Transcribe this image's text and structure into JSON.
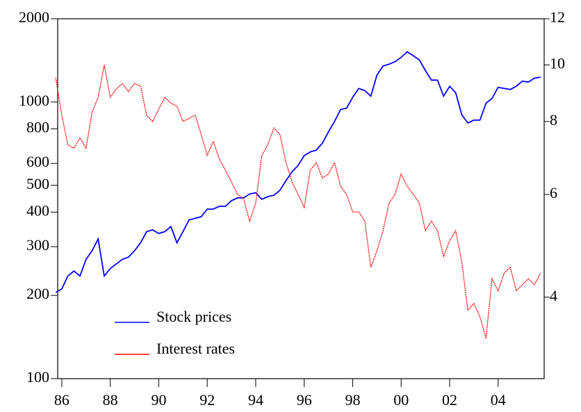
{
  "chart_data": {
    "type": "line",
    "x": [
      1985.75,
      1986,
      1986.25,
      1986.5,
      1986.75,
      1987,
      1987.25,
      1987.5,
      1987.75,
      1988,
      1988.25,
      1988.5,
      1988.75,
      1989,
      1989.25,
      1989.5,
      1989.75,
      1990,
      1990.25,
      1990.5,
      1990.75,
      1991,
      1991.25,
      1991.5,
      1991.75,
      1992,
      1992.25,
      1992.5,
      1992.75,
      1993,
      1993.25,
      1993.5,
      1993.75,
      1994,
      1994.25,
      1994.5,
      1994.75,
      1995,
      1995.25,
      1995.5,
      1995.75,
      1996,
      1996.25,
      1996.5,
      1996.75,
      1997,
      1997.25,
      1997.5,
      1997.75,
      1998,
      1998.25,
      1998.5,
      1998.75,
      1999,
      1999.25,
      1999.5,
      1999.75,
      2000,
      2000.25,
      2000.5,
      2000.75,
      2001,
      2001.25,
      2001.5,
      2001.75,
      2002,
      2002.25,
      2002.5,
      2002.75,
      2003,
      2003.25,
      2003.5,
      2003.75,
      2004,
      2004.25,
      2004.5,
      2004.75,
      2005,
      2005.25,
      2005.5,
      2005.75
    ],
    "series": [
      {
        "name": "Stock prices",
        "color": "#0000ff",
        "axis": "y",
        "values": [
          205,
          211,
          235,
          245,
          235,
          270,
          290,
          320,
          235,
          250,
          260,
          270,
          275,
          290,
          310,
          340,
          345,
          335,
          340,
          355,
          310,
          340,
          375,
          380,
          385,
          410,
          410,
          420,
          420,
          440,
          450,
          450,
          465,
          470,
          445,
          455,
          460,
          480,
          520,
          560,
          590,
          640,
          660,
          670,
          710,
          780,
          850,
          940,
          950,
          1040,
          1120,
          1100,
          1050,
          1250,
          1350,
          1370,
          1400,
          1450,
          1520,
          1470,
          1420,
          1300,
          1200,
          1200,
          1050,
          1140,
          1080,
          900,
          840,
          860,
          860,
          990,
          1030,
          1130,
          1120,
          1110,
          1140,
          1190,
          1180,
          1220,
          1230
        ]
      },
      {
        "name": "Interest rates",
        "color": "#ff0000",
        "axis": "y2",
        "values": [
          9.5,
          8.2,
          7.3,
          7.2,
          7.5,
          7.2,
          8.3,
          8.8,
          10.0,
          8.8,
          9.1,
          9.3,
          9.0,
          9.3,
          9.2,
          8.2,
          8.0,
          8.4,
          8.8,
          8.6,
          8.5,
          8.0,
          8.1,
          8.2,
          7.6,
          7.0,
          7.4,
          6.9,
          6.6,
          6.3,
          6.0,
          5.9,
          5.4,
          5.8,
          7.0,
          7.3,
          7.8,
          7.6,
          6.8,
          6.3,
          6.0,
          5.7,
          6.6,
          6.8,
          6.4,
          6.5,
          6.8,
          6.2,
          6.0,
          5.6,
          5.6,
          5.4,
          4.5,
          4.8,
          5.2,
          5.8,
          6.0,
          6.5,
          6.2,
          6.0,
          5.8,
          5.2,
          5.4,
          5.2,
          4.7,
          5.0,
          5.2,
          4.6,
          3.8,
          3.9,
          3.7,
          3.4,
          4.3,
          4.1,
          4.4,
          4.5,
          4.1,
          4.2,
          4.3,
          4.2,
          4.4
        ]
      }
    ],
    "xlim": [
      1985.83,
      2005.9
    ],
    "xticks": [
      {
        "value": 1986,
        "label": "86"
      },
      {
        "value": 1988,
        "label": "88"
      },
      {
        "value": 1990,
        "label": "90"
      },
      {
        "value": 1992,
        "label": "92"
      },
      {
        "value": 1994,
        "label": "94"
      },
      {
        "value": 1996,
        "label": "96"
      },
      {
        "value": 1998,
        "label": "98"
      },
      {
        "value": 2000,
        "label": "00"
      },
      {
        "value": 2002,
        "label": "02"
      },
      {
        "value": 2004,
        "label": "04"
      }
    ],
    "ylim": [
      100,
      2000
    ],
    "yscale": "log",
    "yticks": [
      100,
      200,
      300,
      400,
      500,
      600,
      800,
      1000,
      2000
    ],
    "y2lim": [
      2.9,
      12
    ],
    "y2scale": "log",
    "y2ticks": [
      4,
      6,
      8,
      10,
      12
    ],
    "legend": "lower left"
  }
}
